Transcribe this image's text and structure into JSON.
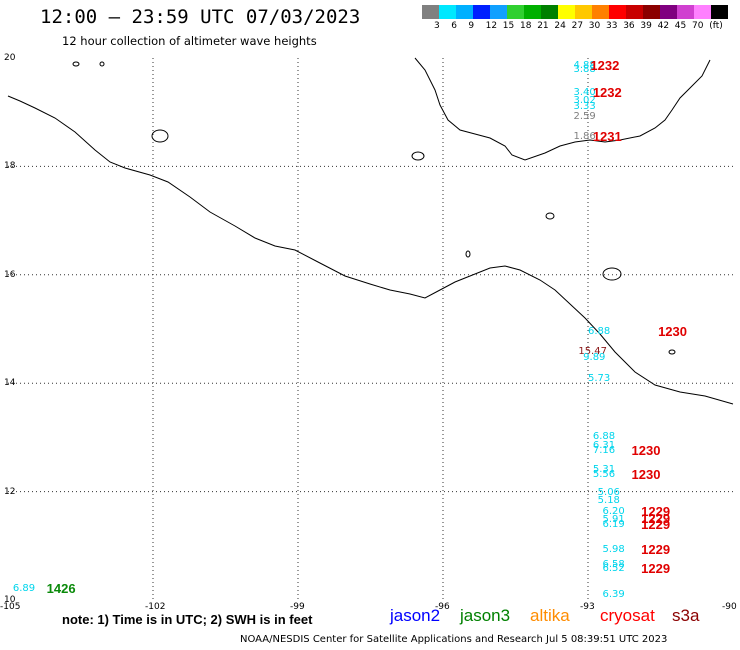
{
  "header": {
    "title": "12:00 – 23:59 UTC 07/03/2023",
    "subtitle": "12 hour collection of altimeter wave heights"
  },
  "legend": {
    "colors": [
      "#808080",
      "#00e8ff",
      "#00b0ff",
      "#0020ff",
      "#10a0ff",
      "#30d030",
      "#00b000",
      "#008000",
      "#ffff00",
      "#ffc800",
      "#ff8000",
      "#ff0000",
      "#c80000",
      "#8b0000",
      "#800080",
      "#d040d0",
      "#ff80ff",
      "#000000"
    ],
    "labels": [
      "3",
      "6",
      "9",
      "12",
      "15",
      "18",
      "21",
      "24",
      "27",
      "30",
      "33",
      "36",
      "39",
      "42",
      "45",
      "70",
      "(ft)"
    ]
  },
  "axes": {
    "lon_ticks": [
      "-105",
      "-102",
      "-99",
      "-96",
      "-93",
      "-90"
    ],
    "lat_ticks": [
      "20",
      "18",
      "16",
      "14",
      "12",
      "10"
    ]
  },
  "observations": [
    {
      "v": "4.88",
      "lon": -93.3,
      "lat": 19.85,
      "c": "cyan"
    },
    {
      "v": "3.88",
      "lon": -93.3,
      "lat": 19.78,
      "c": "cyan"
    },
    {
      "v": "3.40",
      "lon": -93.3,
      "lat": 19.35,
      "c": "cyan"
    },
    {
      "v": "3.02",
      "lon": -93.3,
      "lat": 19.2,
      "c": "cyan"
    },
    {
      "v": "3.33",
      "lon": -93.3,
      "lat": 19.1,
      "c": "cyan"
    },
    {
      "v": "2.59",
      "lon": -93.3,
      "lat": 18.92,
      "c": "gray"
    },
    {
      "v": "1.86",
      "lon": -93.3,
      "lat": 18.55,
      "c": "gray"
    },
    {
      "v": "6.88",
      "lon": -93.0,
      "lat": 14.95,
      "c": "cyan"
    },
    {
      "v": "15.47",
      "lon": -93.2,
      "lat": 14.57,
      "c": "dk"
    },
    {
      "v": "9.89",
      "lon": -93.1,
      "lat": 14.47,
      "c": "cyan"
    },
    {
      "v": "5.73",
      "lon": -93.0,
      "lat": 14.08,
      "c": "cyan"
    },
    {
      "v": "6.88",
      "lon": -92.9,
      "lat": 13.0,
      "c": "cyan"
    },
    {
      "v": "6.31",
      "lon": -92.9,
      "lat": 12.85,
      "c": "cyan"
    },
    {
      "v": "7.16",
      "lon": -92.9,
      "lat": 12.75,
      "c": "cyan"
    },
    {
      "v": "5.31",
      "lon": -92.9,
      "lat": 12.4,
      "c": "cyan"
    },
    {
      "v": "5.56",
      "lon": -92.9,
      "lat": 12.3,
      "c": "cyan"
    },
    {
      "v": "5.06",
      "lon": -92.8,
      "lat": 11.98,
      "c": "cyan"
    },
    {
      "v": "5.18",
      "lon": -92.8,
      "lat": 11.82,
      "c": "cyan"
    },
    {
      "v": "6.20",
      "lon": -92.7,
      "lat": 11.62,
      "c": "cyan"
    },
    {
      "v": "5.91",
      "lon": -92.7,
      "lat": 11.47,
      "c": "cyan"
    },
    {
      "v": "6.19",
      "lon": -92.7,
      "lat": 11.38,
      "c": "cyan"
    },
    {
      "v": "5.98",
      "lon": -92.7,
      "lat": 10.93,
      "c": "cyan"
    },
    {
      "v": "6.58",
      "lon": -92.7,
      "lat": 10.65,
      "c": "cyan"
    },
    {
      "v": "6.52",
      "lon": -92.7,
      "lat": 10.58,
      "c": "cyan"
    },
    {
      "v": "6.39",
      "lon": -92.7,
      "lat": 10.1,
      "c": "cyan"
    },
    {
      "v": "6.89",
      "lon": -104.9,
      "lat": 10.2,
      "c": "cyan"
    }
  ],
  "pass_times": [
    {
      "t": "1232",
      "lon": -92.95,
      "lat": 19.85,
      "c": "red"
    },
    {
      "t": "1232",
      "lon": -92.9,
      "lat": 19.35,
      "c": "red"
    },
    {
      "t": "1231",
      "lon": -92.9,
      "lat": 18.55,
      "c": "red"
    },
    {
      "t": "1230",
      "lon": -91.55,
      "lat": 14.95,
      "c": "red"
    },
    {
      "t": "1230",
      "lon": -92.1,
      "lat": 12.75,
      "c": "red"
    },
    {
      "t": "1230",
      "lon": -92.1,
      "lat": 12.3,
      "c": "red"
    },
    {
      "t": "1229",
      "lon": -91.9,
      "lat": 11.62,
      "c": "red"
    },
    {
      "t": "1229",
      "lon": -91.9,
      "lat": 11.5,
      "c": "red"
    },
    {
      "t": "1229",
      "lon": -91.9,
      "lat": 11.38,
      "c": "red"
    },
    {
      "t": "1229",
      "lon": -91.9,
      "lat": 10.93,
      "c": "red"
    },
    {
      "t": "1229",
      "lon": -91.9,
      "lat": 10.58,
      "c": "red"
    },
    {
      "t": "1426",
      "lon": -104.2,
      "lat": 10.2,
      "c": "green"
    }
  ],
  "footer": {
    "note": "note: 1) Time is in UTC; 2) SWH is in feet",
    "satellites": [
      {
        "name": "jason2",
        "color": "#0000ff"
      },
      {
        "name": "jason3",
        "color": "#008000"
      },
      {
        "name": "altika",
        "color": "#ff8c00"
      },
      {
        "name": "cryosat",
        "color": "#ff0000"
      },
      {
        "name": "s3a",
        "color": "#8b0000"
      }
    ],
    "credit": "NOAA/NESDIS Center for Satellite Applications and Research    Jul  5 08:39:51 UTC 2023"
  }
}
